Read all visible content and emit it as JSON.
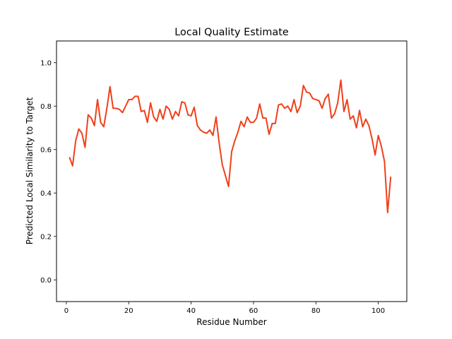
{
  "chart_data": {
    "type": "line",
    "title": "Local Quality Estimate",
    "xlabel": "Residue Number",
    "ylabel": "Predicted Local Similarity to Target",
    "xlim": [
      -3.15,
      109.15
    ],
    "ylim": [
      -0.1,
      1.1
    ],
    "xticks": [
      0,
      20,
      40,
      60,
      80,
      100
    ],
    "yticks": [
      0.0,
      0.2,
      0.4,
      0.6,
      0.8,
      1.0
    ],
    "ytick_labels": [
      "0.0",
      "0.2",
      "0.4",
      "0.6",
      "0.8",
      "1.0"
    ],
    "grid": false,
    "line_color": "#f0401a",
    "series": [
      {
        "name": "",
        "x": [
          1,
          2,
          3,
          4,
          5,
          6,
          7,
          8,
          9,
          10,
          11,
          12,
          13,
          14,
          15,
          16,
          17,
          18,
          19,
          20,
          21,
          22,
          23,
          24,
          25,
          26,
          27,
          28,
          29,
          30,
          31,
          32,
          33,
          34,
          35,
          36,
          37,
          38,
          39,
          40,
          41,
          42,
          43,
          44,
          45,
          46,
          47,
          48,
          49,
          50,
          51,
          52,
          53,
          54,
          55,
          56,
          57,
          58,
          59,
          60,
          61,
          62,
          63,
          64,
          65,
          66,
          67,
          68,
          69,
          70,
          71,
          72,
          73,
          74,
          75,
          76,
          77,
          78,
          79,
          80,
          81,
          82,
          83,
          84,
          85,
          86,
          87,
          88,
          89,
          90,
          91,
          92,
          93,
          94,
          95,
          96,
          97,
          98,
          99,
          100,
          101,
          102,
          103,
          104
        ],
        "y": [
          0.565,
          0.525,
          0.64,
          0.695,
          0.675,
          0.61,
          0.76,
          0.745,
          0.71,
          0.83,
          0.725,
          0.705,
          0.79,
          0.89,
          0.79,
          0.79,
          0.785,
          0.77,
          0.8,
          0.83,
          0.83,
          0.845,
          0.845,
          0.775,
          0.78,
          0.725,
          0.815,
          0.75,
          0.73,
          0.785,
          0.74,
          0.8,
          0.785,
          0.74,
          0.775,
          0.755,
          0.82,
          0.815,
          0.76,
          0.755,
          0.795,
          0.71,
          0.69,
          0.68,
          0.675,
          0.69,
          0.665,
          0.75,
          0.63,
          0.53,
          0.48,
          0.43,
          0.59,
          0.64,
          0.68,
          0.73,
          0.705,
          0.75,
          0.725,
          0.725,
          0.745,
          0.81,
          0.745,
          0.745,
          0.67,
          0.72,
          0.72,
          0.805,
          0.81,
          0.79,
          0.8,
          0.775,
          0.83,
          0.77,
          0.8,
          0.895,
          0.865,
          0.86,
          0.835,
          0.83,
          0.825,
          0.79,
          0.835,
          0.855,
          0.745,
          0.765,
          0.815,
          0.92,
          0.775,
          0.83,
          0.74,
          0.755,
          0.7,
          0.78,
          0.705,
          0.74,
          0.71,
          0.65,
          0.575,
          0.665,
          0.615,
          0.545,
          0.31,
          0.475
        ]
      }
    ]
  }
}
